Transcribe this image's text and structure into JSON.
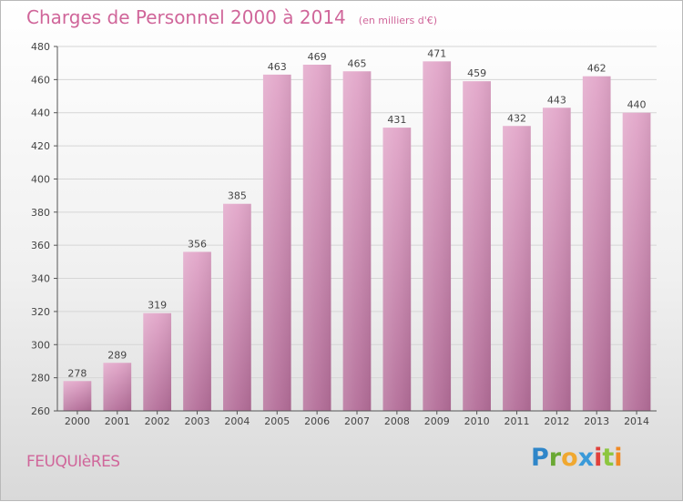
{
  "title": "Charges de Personnel 2000 à 2014",
  "unit_note": "(en milliers d'€)",
  "place": "FEUQUIèRES",
  "logo": "Proxiti",
  "colors": {
    "bar_top": "#e2a6c9",
    "bar_bottom": "#b36d98",
    "title": "#d0669a",
    "grid": "#d6d6d6"
  },
  "chart_data": {
    "type": "bar",
    "title": "Charges de Personnel 2000 à 2014",
    "subtitle": "(en milliers d'€)",
    "categories": [
      "2000",
      "2001",
      "2002",
      "2003",
      "2004",
      "2005",
      "2006",
      "2007",
      "2008",
      "2009",
      "2010",
      "2011",
      "2012",
      "2013",
      "2014"
    ],
    "values": [
      278,
      289,
      319,
      356,
      385,
      463,
      469,
      465,
      431,
      471,
      459,
      432,
      443,
      462,
      440
    ],
    "ylim": [
      260,
      480
    ],
    "yticks": [
      260,
      280,
      300,
      320,
      340,
      360,
      380,
      400,
      420,
      440,
      460,
      480
    ],
    "grid": true,
    "legend": "none"
  }
}
